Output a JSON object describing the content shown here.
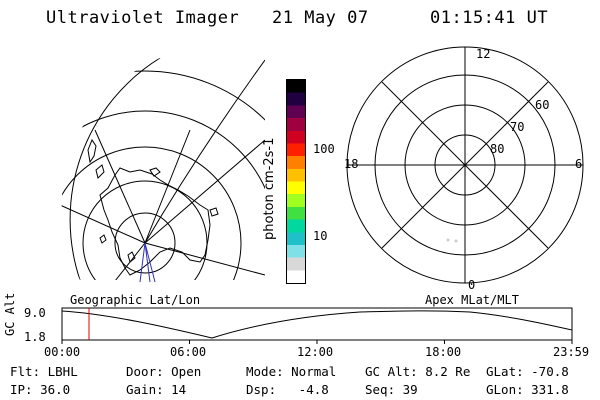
{
  "header": {
    "instrument": "Ultraviolet Imager",
    "date": "21 May 07",
    "time": "01:15:41 UT"
  },
  "colorbar": {
    "label": "photon cm-2s-1",
    "ticks": [
      "100",
      "10"
    ],
    "colors": [
      "#ffffff",
      "#d8d8d8",
      "#7fe0e8",
      "#20c0c8",
      "#00d8a0",
      "#40e040",
      "#a0ff20",
      "#ffff00",
      "#ffc000",
      "#ff8000",
      "#ff2000",
      "#d00020",
      "#a00040",
      "#600050",
      "#200040",
      "#000000"
    ]
  },
  "polar": {
    "mlt_labels": {
      "top": "12",
      "left": "18",
      "right": "6",
      "bottom": "0"
    },
    "lat_labels": [
      "60",
      "70",
      "80"
    ]
  },
  "map_captions": {
    "left": "Geographic Lat/Lon",
    "right": "Apex MLat/MLT"
  },
  "orbit_plot": {
    "ylabel": "GC Alt",
    "yticks": [
      "9.0",
      "1.8"
    ],
    "xticks": [
      "00:00",
      "06:00",
      "12:00",
      "18:00",
      "23:59"
    ],
    "marker_time": "01:15"
  },
  "info": {
    "row1": {
      "filter": "Flt: LBHL",
      "door": "Door: Open",
      "mode": "Mode: Normal",
      "gc_alt": "GC Alt: 8.2 Re",
      "glat": "GLat: -70.8"
    },
    "row2": {
      "ip": "IP: 36.0",
      "gain": "Gain: 14",
      "dsp": "Dsp:   -4.8",
      "seq": "Seq: 39",
      "glon": "GLon: 331.8"
    }
  }
}
